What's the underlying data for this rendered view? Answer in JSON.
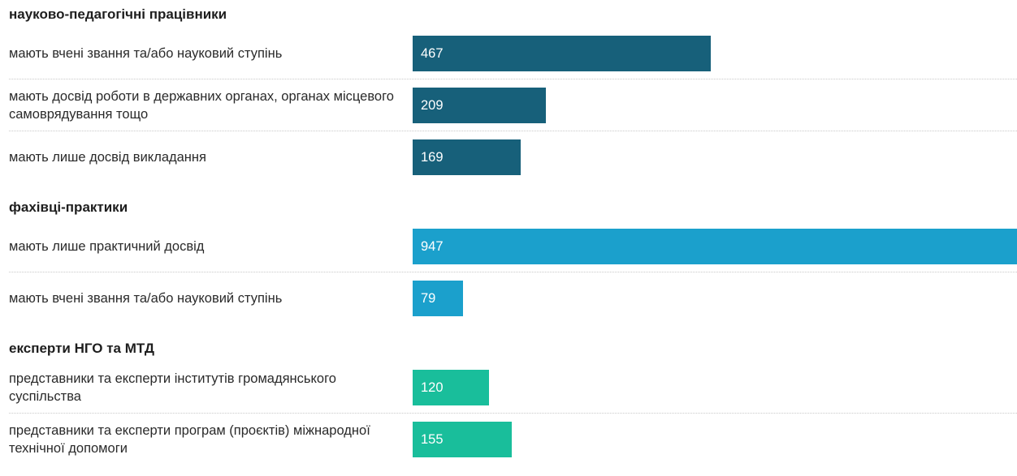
{
  "chart_data": {
    "type": "bar",
    "orientation": "horizontal",
    "xlim": [
      0,
      947
    ],
    "groups": [
      {
        "title": "науково-педагогічні працівники",
        "color": "#17607a",
        "rows": [
          {
            "label": "мають вчені звання та/або науковий ступінь",
            "value": 467
          },
          {
            "label": "мають досвід роботи в державних органах, органах місцевого самоврядування тощо",
            "value": 209
          },
          {
            "label": "мають лише досвід викладання",
            "value": 169
          }
        ]
      },
      {
        "title": "фахівці-практики",
        "color": "#1ba0cc",
        "rows": [
          {
            "label": "мають лише практичний досвід",
            "value": 947
          },
          {
            "label": "мають вчені звання та/або науковий ступінь",
            "value": 79
          }
        ]
      },
      {
        "title": "експерти НГО та МТД",
        "color": "#19be9b",
        "rows": [
          {
            "label": "представники та експерти інститутів громадянського суспільства",
            "value": 120
          },
          {
            "label": "представники та експерти програм (проєктів) міжнародної технічної допомоги",
            "value": 155
          }
        ]
      }
    ]
  }
}
